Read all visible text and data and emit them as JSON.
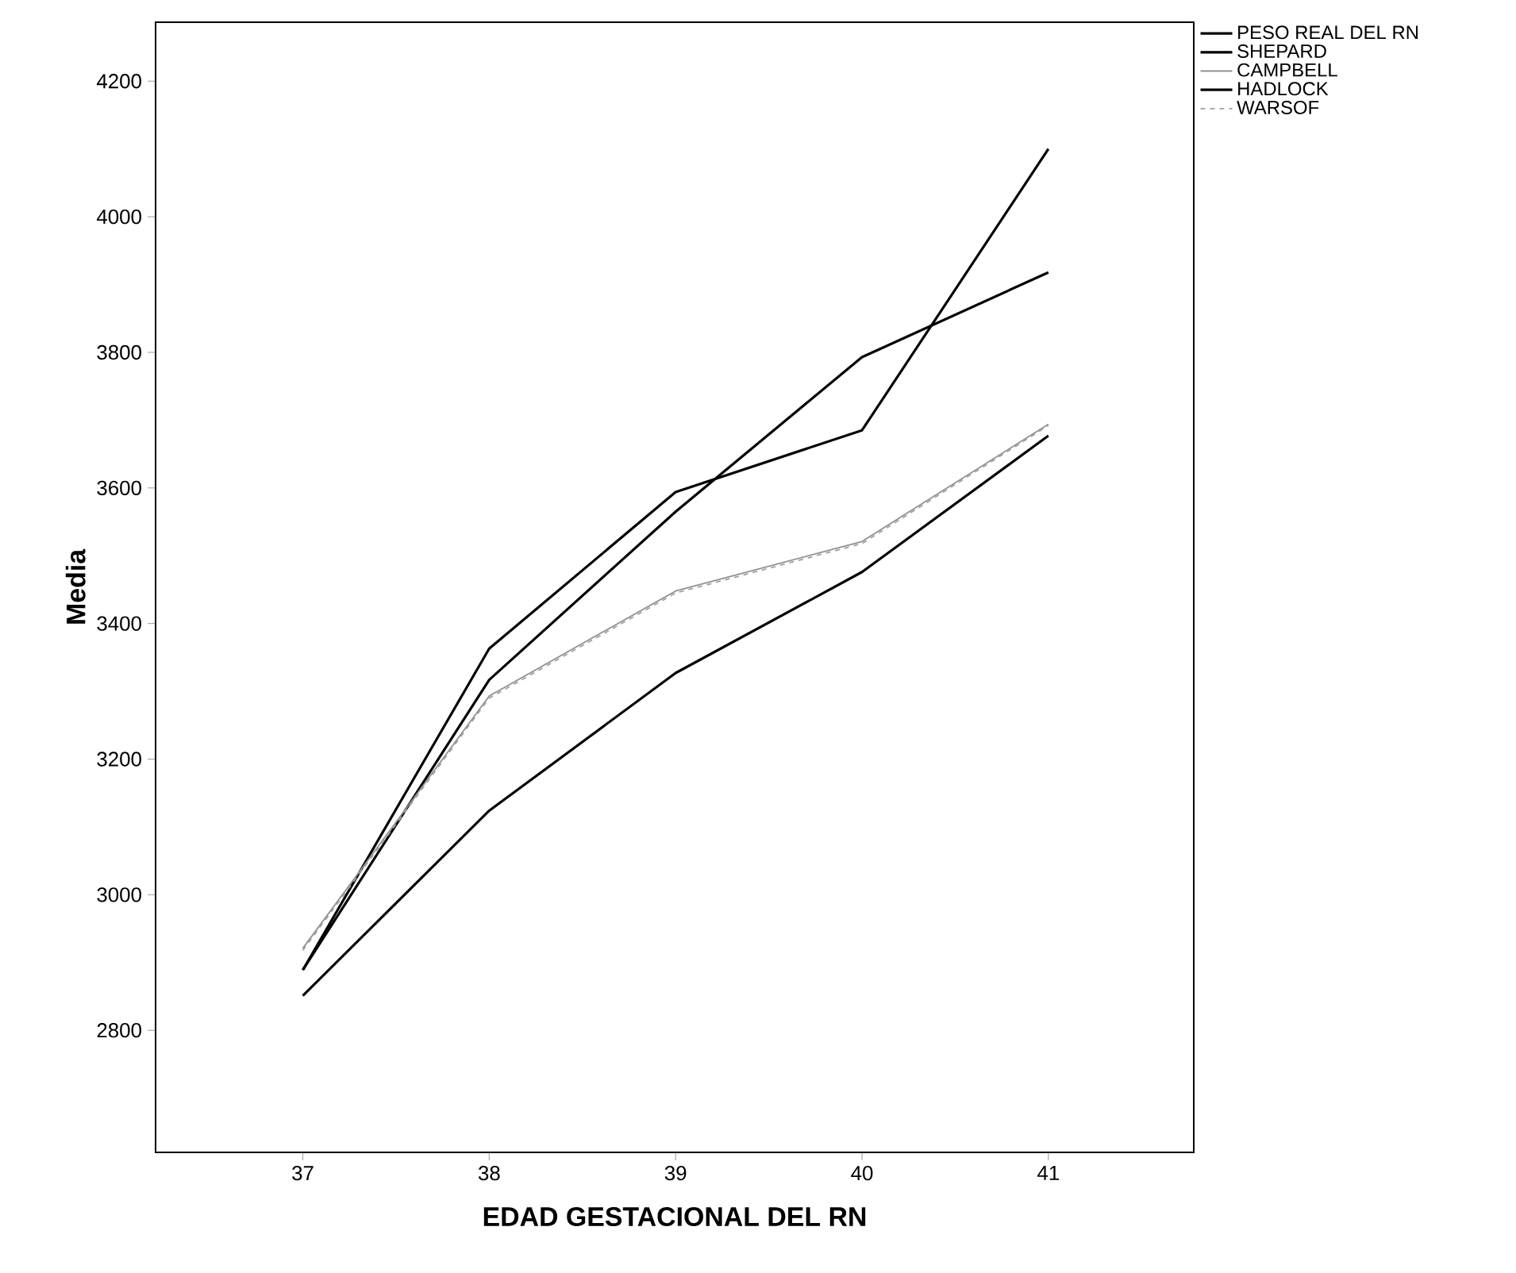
{
  "chart_data": {
    "type": "line",
    "xlabel": "EDAD GESTACIONAL DEL RN",
    "ylabel": "Media",
    "x": [
      37,
      38,
      39,
      40,
      41
    ],
    "xlim": [
      36.21,
      41.78
    ],
    "ylim": [
      2620,
      4287
    ],
    "xticks": [
      37,
      38,
      39,
      40,
      41
    ],
    "yticks": [
      2800,
      3000,
      3200,
      3400,
      3600,
      3800,
      4000,
      4200
    ],
    "legend": "top right",
    "grid": false,
    "series": [
      {
        "name": "PESO REAL DEL RN",
        "color": "#000000",
        "line_style": "solid",
        "values": [
          2889,
          3363,
          3594,
          3685,
          4100
        ]
      },
      {
        "name": "SHEPARD",
        "color": "#000000",
        "line_style": "solid",
        "values": [
          2889,
          3317,
          3565,
          3793,
          3918
        ]
      },
      {
        "name": "CAMPBELL",
        "color": "#909090",
        "line_style": "solid",
        "values": [
          2921,
          3293,
          3448,
          3521,
          3694
        ]
      },
      {
        "name": "HADLOCK",
        "color": "#000000",
        "line_style": "solid",
        "values": [
          2851,
          3124,
          3327,
          3476,
          3677
        ]
      },
      {
        "name": "WARSOF",
        "color": "#a0a0a0",
        "line_style": "dashed",
        "values": [
          2918,
          3290,
          3445,
          3518,
          3692
        ]
      }
    ]
  }
}
